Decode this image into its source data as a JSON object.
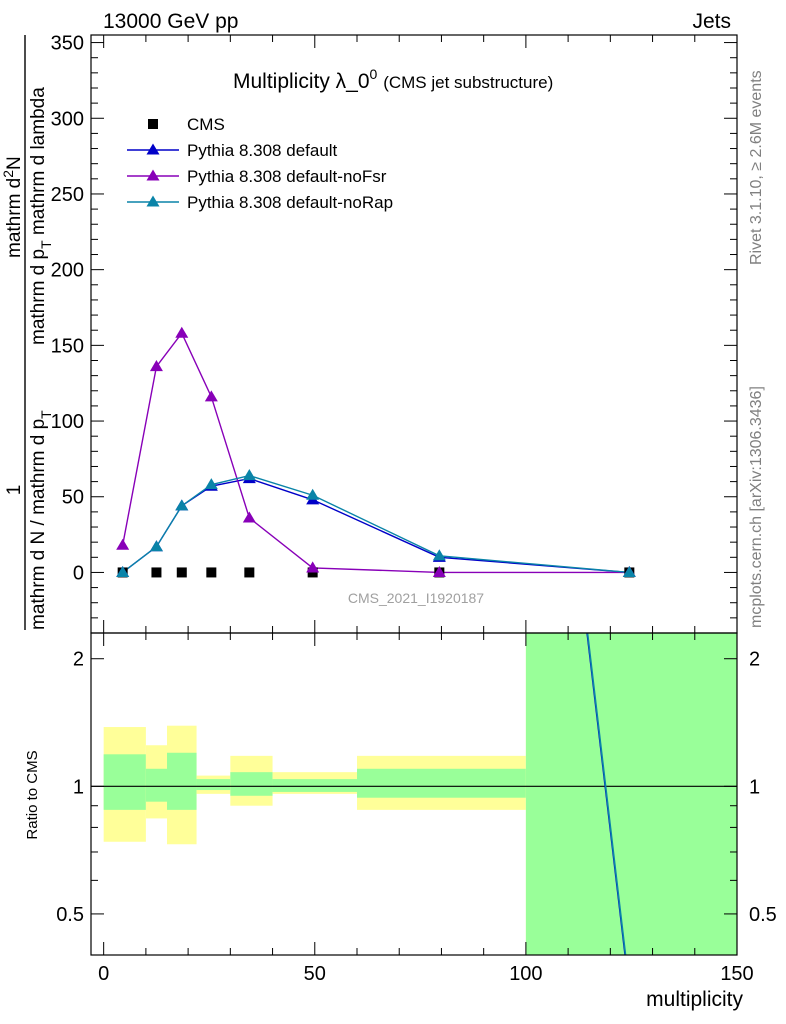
{
  "header": {
    "left": "13000 GeV pp",
    "right": "Jets"
  },
  "side_labels": {
    "rivet": "Rivet 3.1.10, ≥ 2.6M events",
    "mcplots": "mcplots.cern.ch [arXiv:1306.3436]"
  },
  "chart_data": {
    "type": "line",
    "title": "Multiplicity λ_0",
    "title_superscript": "0",
    "subtitle": "(CMS jet substructure)",
    "watermark": "CMS_2021_I1920187",
    "ylabel": {
      "numerator": "mathrm d²N",
      "numerator_prefix": "1",
      "denominator": "mathrm d N / mathrm d p_T mathrm d p_T mathrm d lambda"
    },
    "ylabel_parts": {
      "lhs_frac_num": "1",
      "lhs_frac_den": "mathrm d N / mathrm d p",
      "lhs_frac_den_sub": "T",
      "rhs_frac_num": "mathrm d",
      "rhs_frac_num_sup": "2",
      "rhs_frac_num_tail": "N",
      "rhs_frac_den": "mathrm d p",
      "rhs_frac_den_sub": "T",
      "rhs_frac_den_tail": " mathrm d lambda"
    },
    "xlabel": "multiplicity",
    "ratio_ylabel": "Ratio to CMS",
    "xlim": [
      -3,
      150
    ],
    "ylim": [
      -40,
      355
    ],
    "ratio_ylim": [
      0.4,
      2.3
    ],
    "xticks": [
      0,
      50,
      100,
      150
    ],
    "yticks": [
      0,
      50,
      100,
      150,
      200,
      250,
      300,
      350
    ],
    "ratio_yticks": [
      0.5,
      1,
      2
    ],
    "series": [
      {
        "name": "CMS",
        "marker": "square",
        "color": "#000000",
        "x": [
          4.5,
          12.5,
          18.5,
          25.5,
          34.5,
          49.5,
          79.5,
          124.5
        ],
        "values": [
          0,
          0,
          0,
          0,
          0,
          0,
          0,
          0
        ]
      },
      {
        "name": "Pythia 8.308 default",
        "marker": "triangle",
        "color": "#0000c8",
        "x": [
          4.5,
          12.5,
          18.5,
          25.5,
          34.5,
          49.5,
          79.5,
          124.5
        ],
        "values": [
          0,
          17,
          44,
          57,
          62,
          48,
          10,
          0
        ]
      },
      {
        "name": "Pythia 8.308 default-noFsr",
        "marker": "triangle",
        "color": "#8800b8",
        "x": [
          4.5,
          12.5,
          18.5,
          25.5,
          34.5,
          49.5,
          79.5,
          124.5
        ],
        "values": [
          18,
          136,
          158,
          116,
          36,
          3,
          0,
          0
        ]
      },
      {
        "name": "Pythia 8.308 default-noRap",
        "marker": "triangle",
        "color": "#0a84a8",
        "x": [
          4.5,
          12.5,
          18.5,
          25.5,
          34.5,
          49.5,
          79.5,
          124.5
        ],
        "values": [
          0,
          17,
          44,
          58,
          64,
          51,
          11,
          0
        ]
      }
    ],
    "ratio_bands": {
      "bin_edges": [
        0,
        10,
        15,
        22,
        30,
        40,
        60,
        100,
        150
      ],
      "yellow_low": [
        0.74,
        0.84,
        0.73,
        0.96,
        0.9,
        0.96,
        0.88,
        0.35
      ],
      "yellow_high": [
        1.38,
        1.25,
        1.39,
        1.06,
        1.18,
        1.08,
        1.18,
        2.3
      ],
      "green_low": [
        0.88,
        0.92,
        0.88,
        0.98,
        0.95,
        0.97,
        0.94,
        0.35
      ],
      "green_high": [
        1.19,
        1.1,
        1.2,
        1.04,
        1.08,
        1.04,
        1.1,
        2.3
      ]
    },
    "ratio_lines": [
      {
        "name": "Pythia 8.308 default",
        "color": "#0000c8",
        "x": [
          114.5,
          123.5
        ],
        "values": [
          2.3,
          0.4
        ]
      },
      {
        "name": "Pythia 8.308 default-noRap",
        "color": "#0a84a8",
        "x": [
          114.6,
          123.6
        ],
        "values": [
          2.3,
          0.4
        ]
      }
    ]
  }
}
